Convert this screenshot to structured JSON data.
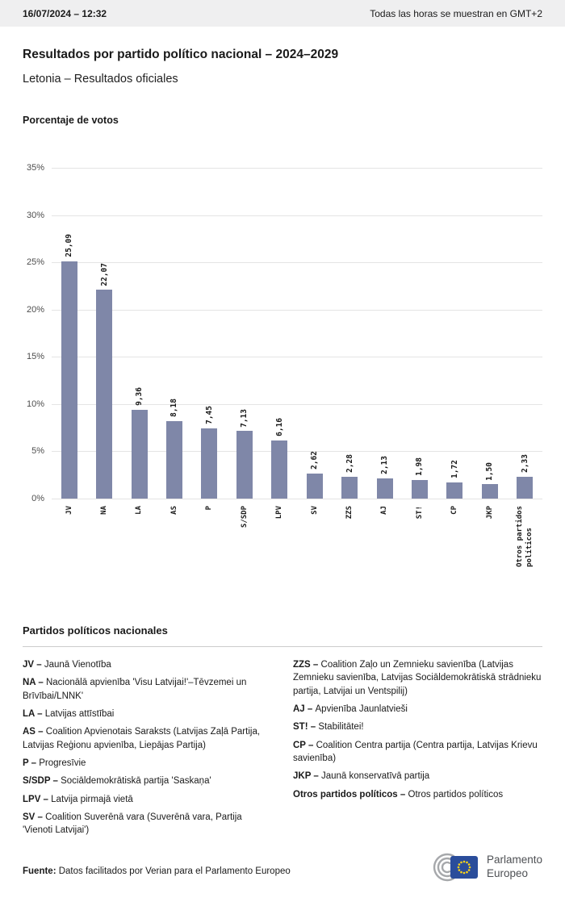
{
  "top_bar": {
    "datetime": "16/07/2024 – 12:32",
    "timezone_note": "Todas las horas se muestran en GMT+2"
  },
  "header": {
    "title": "Resultados por partido político nacional – 2024–2029",
    "subtitle": "Letonia – Resultados oficiales"
  },
  "chart_data": {
    "type": "bar",
    "title": "Porcentaje de votos",
    "categories": [
      "JV",
      "NA",
      "LA",
      "AS",
      "P",
      "S/SDP",
      "LPV",
      "SV",
      "ZZS",
      "AJ",
      "ST!",
      "CP",
      "JKP",
      "Otros partidos políticos"
    ],
    "tick_labels": [
      "JV",
      "NA",
      "LA",
      "AS",
      "P",
      "S/SDP",
      "LPV",
      "SV",
      "ZZS",
      "AJ",
      "ST!",
      "CP",
      "JKP",
      "Otros partidos\npolíticos"
    ],
    "values": [
      25.09,
      22.07,
      9.36,
      8.18,
      7.45,
      7.13,
      6.16,
      2.62,
      2.28,
      2.13,
      1.98,
      1.72,
      1.5,
      2.33
    ],
    "value_labels": [
      "25,09",
      "22,07",
      "9,36",
      "8,18",
      "7,45",
      "7,13",
      "6,16",
      "2,62",
      "2,28",
      "2,13",
      "1,98",
      "1,72",
      "1,50",
      "2,33"
    ],
    "xlabel": "",
    "ylabel": "",
    "ylim": [
      0,
      35
    ],
    "y_ticks": [
      "0%",
      "5%",
      "10%",
      "15%",
      "20%",
      "25%",
      "30%",
      "35%"
    ],
    "grid": true,
    "legend_position": "none",
    "bar_color": "#7f87a8"
  },
  "legend": {
    "heading": "Partidos políticos nacionales",
    "left": [
      {
        "label": "JV –",
        "name": "Jaunā Vienotība"
      },
      {
        "label": "NA –",
        "name": "Nacionālā apvienība 'Visu Latvijai!'–Tēvzemei un Brīvībai/LNNK'"
      },
      {
        "label": "LA –",
        "name": "Latvijas attīstībai"
      },
      {
        "label": "AS –",
        "name": "Coalition Apvienotais Saraksts (Latvijas Zaļā Partija, Latvijas Reģionu apvienība, Liepājas Partija)"
      },
      {
        "label": "P –",
        "name": "Progresīvie"
      },
      {
        "label": "S/SDP –",
        "name": "Sociāldemokrātiskā partija 'Saskaņa'"
      },
      {
        "label": "LPV –",
        "name": "Latvija pirmajā vietā"
      },
      {
        "label": "SV –",
        "name": "Coalition Suverēnā vara (Suverēnā vara, Partija 'Vienoti Latvijai')"
      }
    ],
    "right": [
      {
        "label": "ZZS –",
        "name": "Coalition Zaļo un Zemnieku savienība (Latvijas Zemnieku savienība, Latvijas Sociāldemokrātiskā strādnieku partija, Latvijai un Ventspilij)"
      },
      {
        "label": "AJ –",
        "name": "Apvienība Jaunlatvieši"
      },
      {
        "label": "ST! –",
        "name": "Stabilitātei!"
      },
      {
        "label": "CP –",
        "name": "Coalition Centra partija (Centra partija, Latvijas Krievu savienība)"
      },
      {
        "label": "JKP –",
        "name": "Jaunā konservatīvā partija"
      },
      {
        "label": "Otros partidos políticos –",
        "name": "Otros partidos políticos"
      }
    ]
  },
  "footer": {
    "source_label": "Fuente:",
    "source_text": "Datos facilitados por Verian para el Parlamento Europeo"
  },
  "logo": {
    "line1": "Parlamento",
    "line2": "Europeo",
    "flag_color": "#2a4d9b",
    "star_color": "#ffd617"
  }
}
